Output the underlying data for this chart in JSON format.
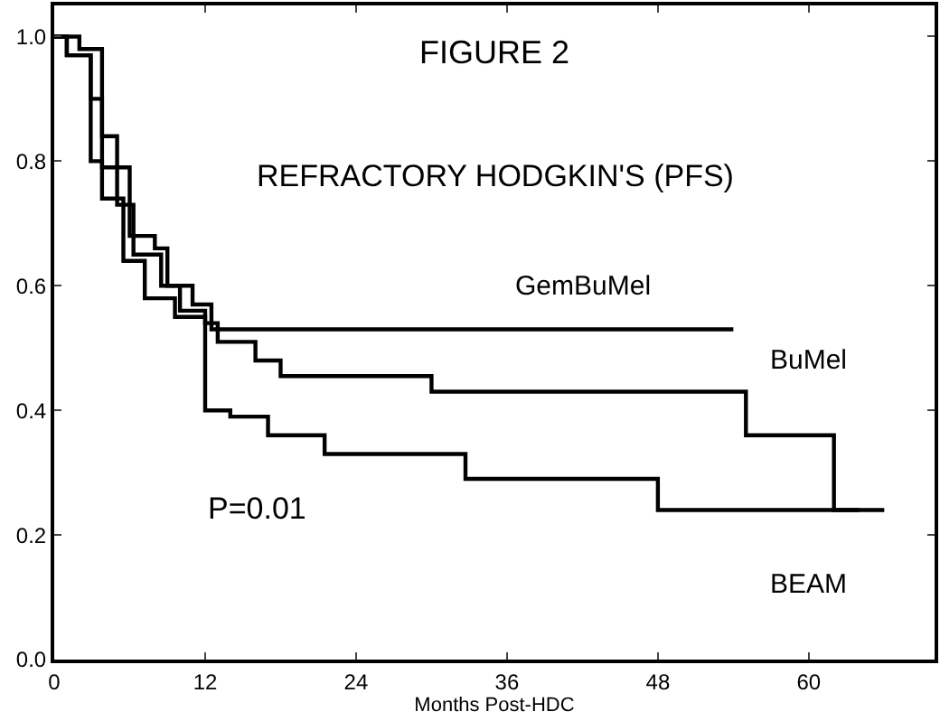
{
  "chart_data": {
    "type": "step",
    "title": "FIGURE 2",
    "subtitle": "REFRACTORY HODGKIN'S (PFS)",
    "xlabel": "Months Post-HDC",
    "annotations": [
      "P=0.01"
    ],
    "series": [
      {
        "name": "GemBuMel",
        "color": "#000000",
        "x": [
          0,
          2,
          3.8,
          6,
          8,
          9,
          11,
          12.5,
          54
        ],
        "values": [
          1.0,
          0.98,
          0.79,
          0.68,
          0.66,
          0.6,
          0.57,
          0.53,
          0.53
        ]
      },
      {
        "name": "BuMel",
        "color": "#000000",
        "x": [
          0,
          1,
          2.9,
          3.8,
          5,
          6.3,
          8.5,
          10,
          12,
          13,
          16,
          18,
          30,
          55,
          62,
          64
        ],
        "values": [
          1.0,
          0.97,
          0.9,
          0.84,
          0.73,
          0.65,
          0.6,
          0.56,
          0.54,
          0.51,
          0.48,
          0.455,
          0.43,
          0.36,
          0.24,
          0.24
        ]
      },
      {
        "name": "BEAM",
        "color": "#000000",
        "x": [
          0,
          1,
          2.9,
          3.8,
          5.5,
          7.2,
          9.6,
          12,
          14,
          17,
          21.5,
          32.7,
          48,
          66
        ],
        "values": [
          1.0,
          0.97,
          0.8,
          0.74,
          0.64,
          0.58,
          0.55,
          0.4,
          0.39,
          0.36,
          0.33,
          0.29,
          0.24,
          0.24
        ]
      }
    ],
    "xlim": [
      0,
      70
    ],
    "ylim": [
      0,
      1.05
    ],
    "xticks": [
      0,
      12,
      24,
      36,
      48,
      60
    ],
    "yticks": [
      {
        "value": 0,
        "label": "0.0"
      },
      {
        "value": 0.2,
        "label": "0.2"
      },
      {
        "value": 0.4,
        "label": "0.4"
      },
      {
        "value": 0.6,
        "label": "0.6"
      },
      {
        "value": 0.8,
        "label": "0.8"
      },
      {
        "value": 1,
        "label": "1.0"
      }
    ],
    "grid": false,
    "legend": false
  }
}
